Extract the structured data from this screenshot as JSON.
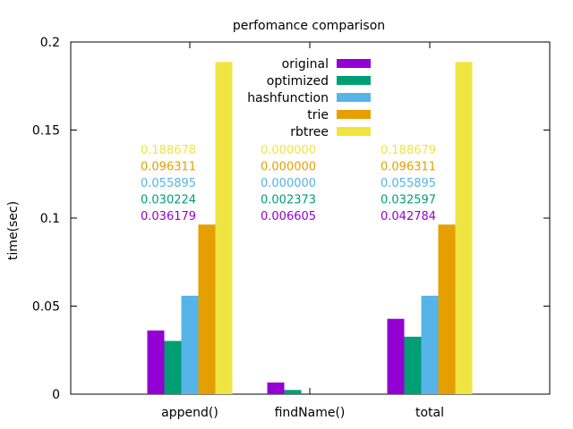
{
  "chart_data": {
    "type": "bar",
    "title": "perfomance comparison",
    "xlabel": "",
    "ylabel": "time(sec)",
    "ylim": [
      0,
      0.2
    ],
    "yticks": [
      0,
      0.05,
      0.1,
      0.15,
      0.2
    ],
    "ytick_labels": [
      "0",
      "0.05",
      "0.1",
      "0.15",
      "0.2"
    ],
    "categories": [
      "append()",
      "findName()",
      "total"
    ],
    "grid": false,
    "legend_position": "top-center",
    "series": [
      {
        "name": "original",
        "color": "#9400d3",
        "values": [
          0.036179,
          0.006605,
          0.042784
        ]
      },
      {
        "name": "optimized",
        "color": "#009e73",
        "values": [
          0.030224,
          0.002373,
          0.032597
        ]
      },
      {
        "name": "hashfunction",
        "color": "#56b4e9",
        "values": [
          0.055895,
          0.0,
          0.055895
        ]
      },
      {
        "name": "trie",
        "color": "#e69f00",
        "values": [
          0.096311,
          0.0,
          0.096311
        ]
      },
      {
        "name": "rbtree",
        "color": "#f0e442",
        "values": [
          0.188678,
          0.0,
          0.188679
        ]
      }
    ],
    "annotations": [
      {
        "category": "append()",
        "labels": [
          "0.188678",
          "0.096311",
          "0.055895",
          "0.030224",
          "0.036179"
        ]
      },
      {
        "category": "findName()",
        "labels": [
          "0.000000",
          "0.000000",
          "0.000000",
          "0.002373",
          "0.006605"
        ]
      },
      {
        "category": "total",
        "labels": [
          "0.188679",
          "0.096311",
          "0.055895",
          "0.032597",
          "0.042784"
        ]
      }
    ]
  }
}
